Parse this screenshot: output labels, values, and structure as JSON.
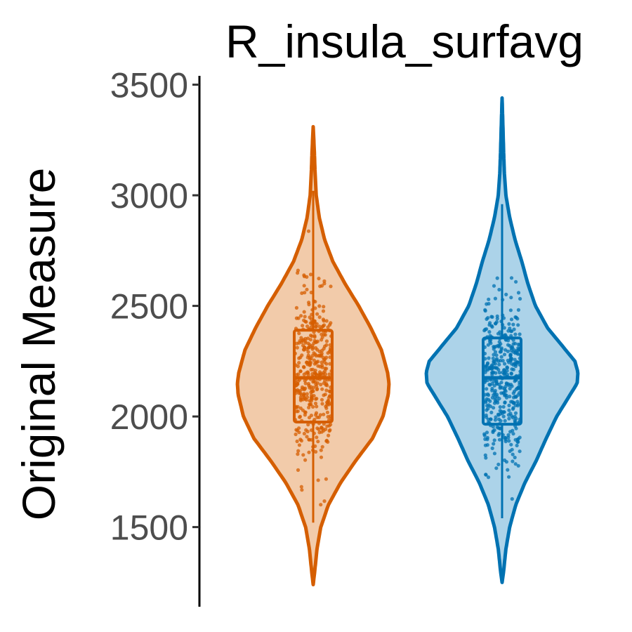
{
  "chart_data": {
    "type": "violin",
    "title": "R_insula_surfavg",
    "xlabel": "",
    "ylabel": "Original Measure",
    "ylim": [
      1140,
      3540
    ],
    "yticks": [
      1500,
      2000,
      2500,
      3000,
      3500
    ],
    "grid": false,
    "legend": "none",
    "series": [
      {
        "color": "#d55e00",
        "fill": "#f2cbaa",
        "min": 1240,
        "max": 3310,
        "q1": 1975,
        "median": 2175,
        "q3": 2390,
        "whisker_low": 1520,
        "whisker_high": 3020,
        "density_profile": [
          [
            1240,
            0.0
          ],
          [
            1300,
            0.02
          ],
          [
            1400,
            0.05
          ],
          [
            1500,
            0.1
          ],
          [
            1600,
            0.2
          ],
          [
            1700,
            0.36
          ],
          [
            1800,
            0.56
          ],
          [
            1900,
            0.78
          ],
          [
            2000,
            0.92
          ],
          [
            2100,
            0.99
          ],
          [
            2150,
            1.0
          ],
          [
            2200,
            0.98
          ],
          [
            2300,
            0.9
          ],
          [
            2400,
            0.76
          ],
          [
            2500,
            0.6
          ],
          [
            2600,
            0.42
          ],
          [
            2700,
            0.26
          ],
          [
            2800,
            0.15
          ],
          [
            2900,
            0.08
          ],
          [
            3000,
            0.04
          ],
          [
            3100,
            0.025
          ],
          [
            3200,
            0.015
          ],
          [
            3310,
            0.0
          ]
        ]
      },
      {
        "color": "#0072b2",
        "fill": "#acd3e9",
        "min": 1250,
        "max": 3440,
        "q1": 1965,
        "median": 2175,
        "q3": 2355,
        "whisker_low": 1540,
        "whisker_high": 2960,
        "density_profile": [
          [
            1250,
            0.0
          ],
          [
            1300,
            0.02
          ],
          [
            1400,
            0.05
          ],
          [
            1500,
            0.1
          ],
          [
            1600,
            0.18
          ],
          [
            1700,
            0.3
          ],
          [
            1800,
            0.45
          ],
          [
            1900,
            0.58
          ],
          [
            2000,
            0.72
          ],
          [
            2100,
            0.9
          ],
          [
            2150,
            0.99
          ],
          [
            2200,
            1.0
          ],
          [
            2250,
            0.96
          ],
          [
            2300,
            0.84
          ],
          [
            2400,
            0.6
          ],
          [
            2500,
            0.44
          ],
          [
            2600,
            0.34
          ],
          [
            2700,
            0.26
          ],
          [
            2800,
            0.17
          ],
          [
            2900,
            0.1
          ],
          [
            3000,
            0.05
          ],
          [
            3100,
            0.03
          ],
          [
            3200,
            0.02
          ],
          [
            3300,
            0.012
          ],
          [
            3440,
            0.0
          ]
        ]
      }
    ]
  }
}
